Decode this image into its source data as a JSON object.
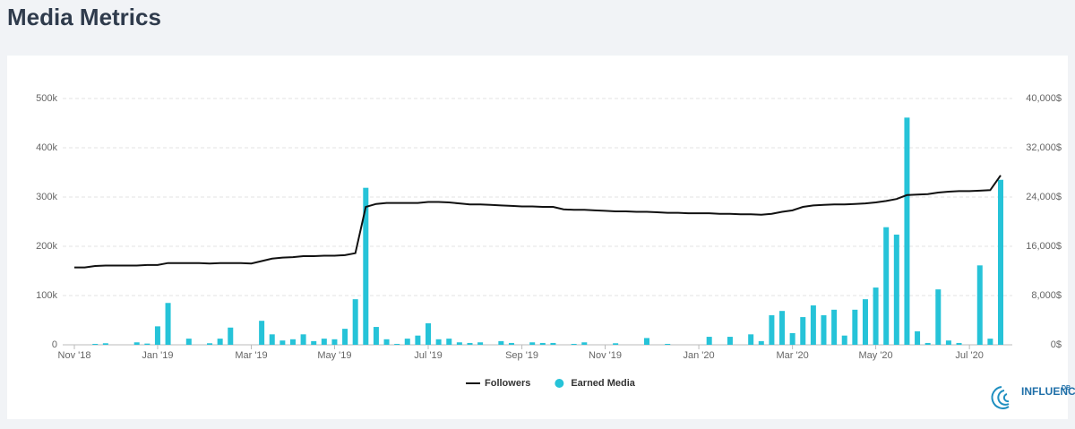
{
  "title": "Media Metrics",
  "logo": {
    "text": "INFLUENCER",
    "sup": "DB"
  },
  "chart_data": {
    "type": "combo",
    "categories": [
      "Nov '18",
      null,
      null,
      null,
      null,
      null,
      null,
      null,
      "Jan '19",
      null,
      null,
      null,
      null,
      null,
      null,
      null,
      null,
      "Mar '19",
      null,
      null,
      null,
      null,
      null,
      null,
      null,
      "May '19",
      null,
      null,
      null,
      null,
      null,
      null,
      null,
      null,
      "Jul '19",
      null,
      null,
      null,
      null,
      null,
      null,
      null,
      null,
      "Sep '19",
      null,
      null,
      null,
      null,
      null,
      null,
      null,
      "Nov '19",
      null,
      null,
      null,
      null,
      null,
      null,
      null,
      null,
      "Jan '20",
      null,
      null,
      null,
      null,
      null,
      null,
      null,
      null,
      "Mar '20",
      null,
      null,
      null,
      null,
      null,
      null,
      null,
      "May '20",
      null,
      null,
      null,
      null,
      null,
      null,
      null,
      null,
      "Jul '20",
      null,
      null,
      null
    ],
    "series": [
      {
        "name": "Earned Media",
        "type": "bar",
        "axis": "y2",
        "color": "#26c3d8",
        "values": [
          0,
          0,
          150,
          250,
          0,
          0,
          400,
          200,
          3000,
          6800,
          0,
          1000,
          0,
          250,
          1000,
          2800,
          0,
          0,
          3900,
          1700,
          700,
          900,
          1700,
          600,
          1000,
          900,
          2600,
          7400,
          25500,
          2900,
          900,
          150,
          1000,
          1500,
          3500,
          900,
          1000,
          400,
          300,
          400,
          0,
          600,
          300,
          0,
          400,
          300,
          300,
          0,
          150,
          400,
          0,
          0,
          250,
          0,
          0,
          1100,
          0,
          150,
          0,
          0,
          0,
          1300,
          0,
          1300,
          0,
          1700,
          600,
          4800,
          5500,
          1900,
          4500,
          6400,
          4800,
          5700,
          1500,
          5700,
          7400,
          9300,
          19100,
          17900,
          36900,
          2200,
          300,
          9000,
          700,
          300,
          0,
          12900,
          1000,
          26800
        ]
      },
      {
        "name": "Followers",
        "type": "line",
        "color": "#111111",
        "values": [
          157000,
          157000,
          160000,
          161000,
          161000,
          161000,
          161000,
          162000,
          162000,
          166000,
          166000,
          166000,
          166000,
          165000,
          166000,
          166000,
          166000,
          165000,
          170000,
          175000,
          177000,
          178000,
          180000,
          180000,
          181000,
          181000,
          182000,
          186000,
          280000,
          286000,
          288000,
          288000,
          288000,
          288000,
          290000,
          290000,
          289000,
          287000,
          285000,
          285000,
          284000,
          283000,
          282000,
          281000,
          281000,
          280000,
          280000,
          275000,
          274000,
          274000,
          273000,
          272000,
          271000,
          271000,
          270000,
          270000,
          269000,
          268000,
          268000,
          267000,
          267000,
          267000,
          266000,
          266000,
          265000,
          265000,
          264000,
          266000,
          270000,
          273000,
          280000,
          283000,
          284000,
          285000,
          285000,
          286000,
          287000,
          289000,
          292000,
          296000,
          304000,
          305000,
          306000,
          309000,
          311000,
          312000,
          312000,
          313000,
          314000,
          344000
        ]
      }
    ],
    "ylim": [
      0,
      500000
    ],
    "yticks": [
      {
        "value": 0,
        "label": "0"
      },
      {
        "value": 100000,
        "label": "100k"
      },
      {
        "value": 200000,
        "label": "200k"
      },
      {
        "value": 300000,
        "label": "300k"
      },
      {
        "value": 400000,
        "label": "400k"
      },
      {
        "value": 500000,
        "label": "500k"
      }
    ],
    "y2lim": [
      0,
      40000
    ],
    "y2ticks": [
      {
        "value": 0,
        "label": "0$"
      },
      {
        "value": 8000,
        "label": "8,000$"
      },
      {
        "value": 16000,
        "label": "16,000$"
      },
      {
        "value": 24000,
        "label": "24,000$"
      },
      {
        "value": 32000,
        "label": "32,000$"
      },
      {
        "value": 40000,
        "label": "40,000$"
      }
    ],
    "grid": true
  }
}
